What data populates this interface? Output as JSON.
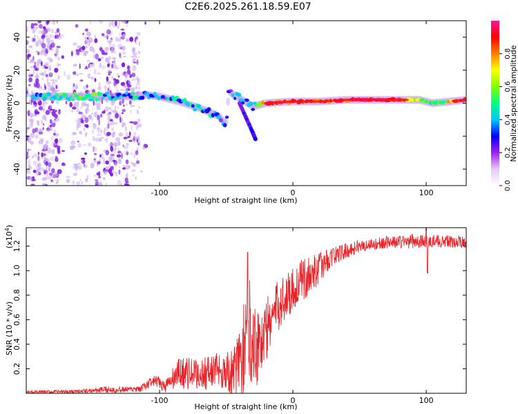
{
  "title": "C2E6.2025.261.18.59.E07",
  "colors": {
    "snr_line": "#e8252a",
    "dot_dense": "#7a14e0",
    "dot_light": "#c9a8ef",
    "frame": "#000000"
  },
  "chart_data": [
    {
      "type": "heatmap",
      "name": "spectrogram",
      "xlabel": "Height of straight line (km)",
      "ylabel": "Frequency (Hz)",
      "xlim": [
        -200,
        130
      ],
      "ylim": [
        -50,
        50
      ],
      "xticks": [
        -100,
        0,
        100
      ],
      "xtick_labels": [
        "-100",
        "0",
        "100"
      ],
      "yticks": [
        -40,
        -20,
        0,
        20,
        40
      ],
      "ytick_labels": [
        "-40",
        "-20",
        "0",
        "20",
        "40"
      ],
      "colorbar": {
        "label": "Normalized spectral amplitude",
        "range": [
          0,
          1
        ],
        "ticks": [
          0.0,
          0.2,
          0.4,
          0.6,
          0.8
        ],
        "tick_labels": [
          "0.0",
          "0.2",
          "0.4",
          "0.6",
          "0.8"
        ],
        "colormap": [
          "#ffffff",
          "#e6c8f5",
          "#a020f0",
          "#0000ff",
          "#00c8ff",
          "#00ff80",
          "#80ff00",
          "#ffff00",
          "#ff8000",
          "#ff0000",
          "#ff1493"
        ]
      },
      "main_band": [
        {
          "x": -195,
          "y": 4,
          "a": 0.35
        },
        {
          "x": -175,
          "y": 4,
          "a": 0.45
        },
        {
          "x": -150,
          "y": 4,
          "a": 0.45
        },
        {
          "x": -125,
          "y": 4,
          "a": 0.4
        },
        {
          "x": -110,
          "y": 5,
          "a": 0.35
        },
        {
          "x": -100,
          "y": 4,
          "a": 0.35
        },
        {
          "x": -85,
          "y": 1,
          "a": 0.4
        },
        {
          "x": -70,
          "y": -3,
          "a": 0.4
        },
        {
          "x": -55,
          "y": -8,
          "a": 0.35
        },
        {
          "x": -50,
          "y": -13,
          "a": 0.3
        },
        {
          "x": -48,
          "y": 7,
          "a": 0.3
        },
        {
          "x": -40,
          "y": 3,
          "a": 0.3
        },
        {
          "x": -30,
          "y": -2,
          "a": 0.35
        },
        {
          "x": -20,
          "y": 0,
          "a": 0.9
        },
        {
          "x": 0,
          "y": 1,
          "a": 0.9
        },
        {
          "x": 20,
          "y": 1,
          "a": 0.8
        },
        {
          "x": 40,
          "y": 2,
          "a": 0.9
        },
        {
          "x": 60,
          "y": 2,
          "a": 0.95
        },
        {
          "x": 80,
          "y": 2,
          "a": 0.9
        },
        {
          "x": 95,
          "y": 2,
          "a": 0.6
        },
        {
          "x": 105,
          "y": 0,
          "a": 0.5
        },
        {
          "x": 130,
          "y": 2,
          "a": 0.95
        }
      ],
      "secondary_band": [
        {
          "x": -40,
          "y": 0
        },
        {
          "x": -35,
          "y": -9
        },
        {
          "x": -30,
          "y": -18
        },
        {
          "x": -28,
          "y": -22
        }
      ],
      "noise_region_x": [
        -200,
        -110
      ]
    },
    {
      "type": "line",
      "name": "snr",
      "xlabel": "Height of straight line (km)",
      "ylabel": "SNR (10 * v/v)",
      "multiplier_label": "(x10",
      "multiplier_exp": "4",
      "xlim": [
        -200,
        130
      ],
      "ylim": [
        0,
        1.35
      ],
      "xticks": [
        -100,
        0,
        100
      ],
      "xtick_labels": [
        "-100",
        "0",
        "100"
      ],
      "yticks": [
        0.2,
        0.4,
        0.6,
        0.8,
        1.0,
        1.2
      ],
      "ytick_labels": [
        "0.2",
        "0.4",
        "0.6",
        "0.8",
        "1.0",
        "1.2"
      ],
      "trend": [
        {
          "x": -200,
          "y": 0.01,
          "noise": 0.012
        },
        {
          "x": -160,
          "y": 0.015,
          "noise": 0.015
        },
        {
          "x": -140,
          "y": 0.03,
          "noise": 0.025
        },
        {
          "x": -115,
          "y": 0.03,
          "noise": 0.025
        },
        {
          "x": -105,
          "y": 0.1,
          "noise": 0.05
        },
        {
          "x": -95,
          "y": 0.06,
          "noise": 0.06
        },
        {
          "x": -85,
          "y": 0.17,
          "noise": 0.13
        },
        {
          "x": -70,
          "y": 0.15,
          "noise": 0.13
        },
        {
          "x": -55,
          "y": 0.2,
          "noise": 0.15
        },
        {
          "x": -45,
          "y": 0.15,
          "noise": 0.2
        },
        {
          "x": -38,
          "y": 0.3,
          "noise": 0.35
        },
        {
          "x": -33,
          "y": 0.55,
          "noise": 0.45
        },
        {
          "x": -28,
          "y": 0.4,
          "noise": 0.35
        },
        {
          "x": -22,
          "y": 0.45,
          "noise": 0.3
        },
        {
          "x": -15,
          "y": 0.65,
          "noise": 0.22
        },
        {
          "x": -5,
          "y": 0.8,
          "noise": 0.2
        },
        {
          "x": 5,
          "y": 0.9,
          "noise": 0.18
        },
        {
          "x": 15,
          "y": 0.98,
          "noise": 0.15
        },
        {
          "x": 30,
          "y": 1.12,
          "noise": 0.08
        },
        {
          "x": 50,
          "y": 1.2,
          "noise": 0.05
        },
        {
          "x": 70,
          "y": 1.23,
          "noise": 0.05
        },
        {
          "x": 90,
          "y": 1.24,
          "noise": 0.06
        },
        {
          "x": 110,
          "y": 1.24,
          "noise": 0.05
        },
        {
          "x": 130,
          "y": 1.23,
          "noise": 0.05
        }
      ],
      "annotations": [
        {
          "x": -34,
          "y": 1.15,
          "note": "peak"
        },
        {
          "x": 100,
          "y": 1.35,
          "note": "peak"
        },
        {
          "x": 101,
          "y": 0.98,
          "note": "dip"
        }
      ]
    }
  ]
}
